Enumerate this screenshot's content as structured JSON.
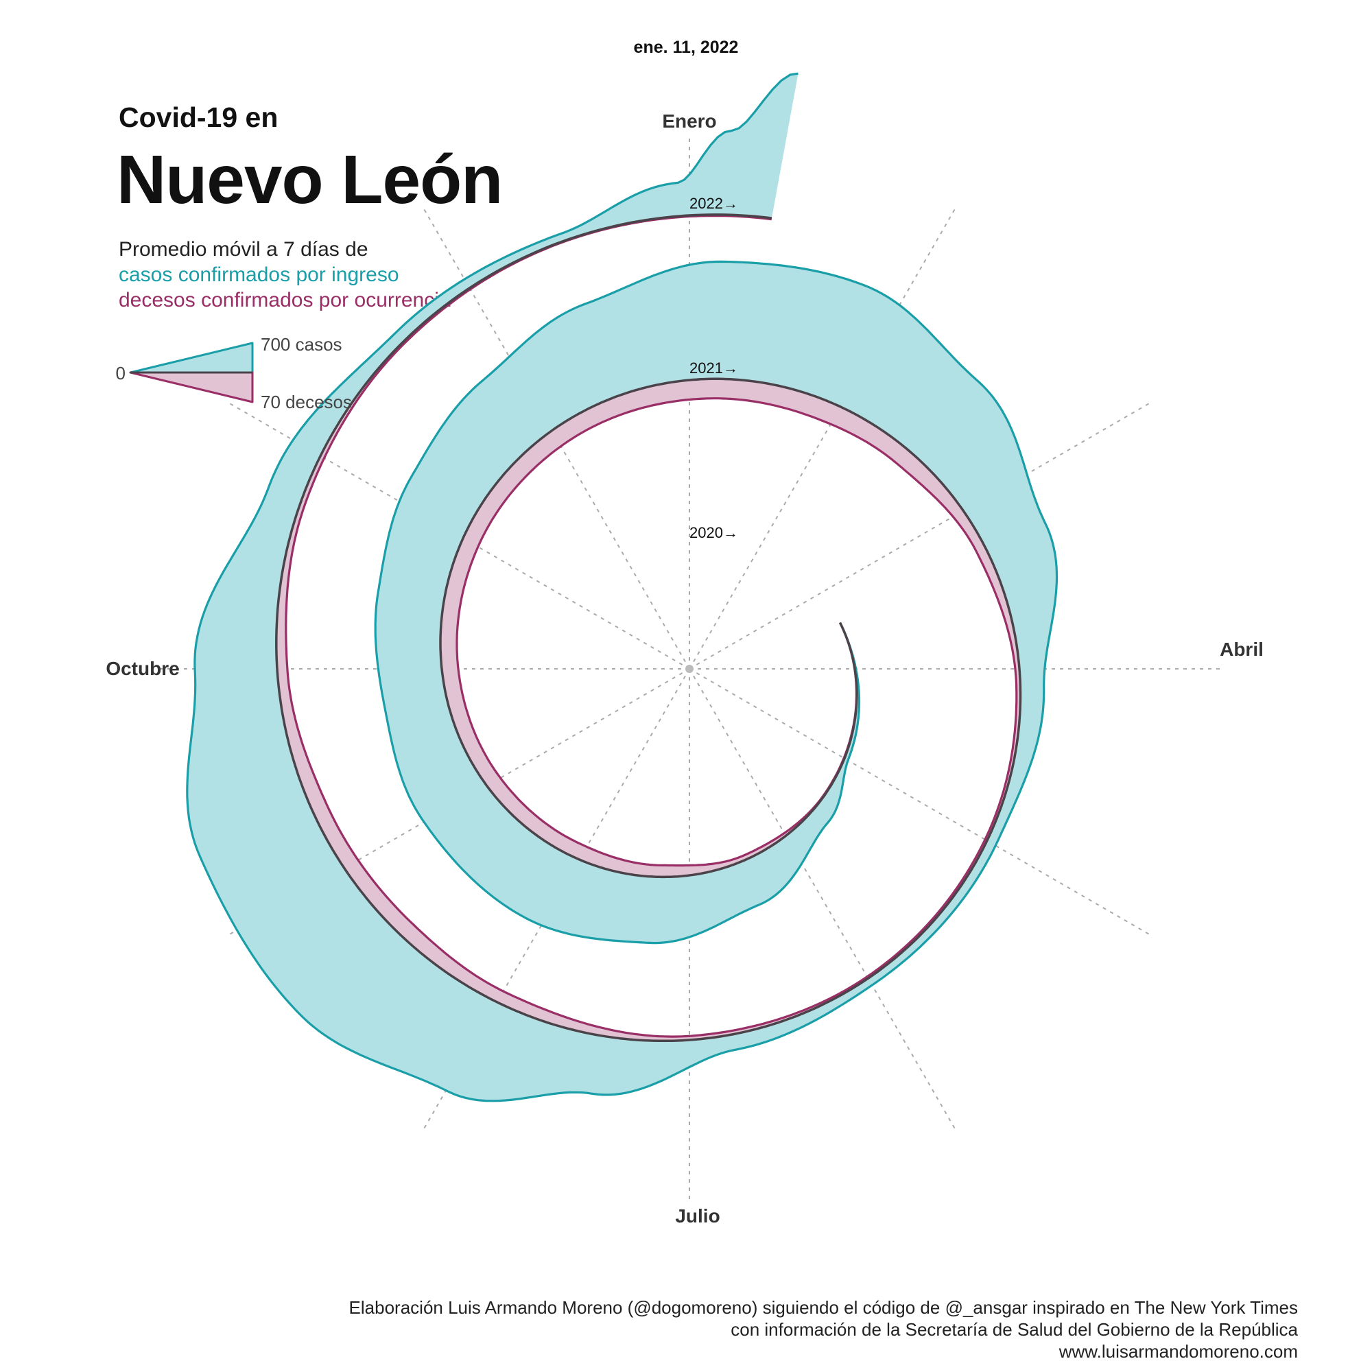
{
  "header": {
    "date": "ene. 11, 2022",
    "title_small": "Covid-19 en",
    "title_big": "Nuevo León",
    "subtitle_line1": "Promedio móvil a 7 días de",
    "subtitle_cases": "casos confirmados por ingreso",
    "subtitle_deaths": "decesos confirmados por ocurrencia"
  },
  "legend": {
    "zero": "0",
    "cases": "700 casos",
    "deaths": "70 decesos"
  },
  "colors": {
    "cases_fill": "#b2e1e5",
    "cases_stroke": "#1a9ea8",
    "deaths_fill": "#e2c3d3",
    "deaths_stroke": "#9a2e66",
    "baseline": "#4a434a",
    "grid": "#aaaaaa"
  },
  "credits": {
    "line1": "Elaboración Luis Armando Moreno (@dogomoreno) siguiendo el código de @_ansgar inspirado en The New York Times",
    "line2": "con información de la Secretaría de Salud del Gobierno de la República",
    "line3": "www.luisarmandomoreno.com"
  },
  "chart_data": {
    "type": "area",
    "layout": "spiral",
    "month_labels": [
      "Enero",
      "Abril",
      "Julio",
      "Octubre"
    ],
    "year_labels": [
      "2020→",
      "2021→",
      "2022→"
    ],
    "legend_scale": {
      "cases": 700,
      "deaths": 70
    },
    "series": [
      {
        "name": "casos confirmados por ingreso",
        "points": [
          {
            "date": "2020-03-15",
            "value": 0
          },
          {
            "date": "2020-05-01",
            "value": 20
          },
          {
            "date": "2020-05-20",
            "value": 100
          },
          {
            "date": "2020-06-15",
            "value": 240
          },
          {
            "date": "2020-07-10",
            "value": 340
          },
          {
            "date": "2020-08-05",
            "value": 390
          },
          {
            "date": "2020-09-01",
            "value": 370
          },
          {
            "date": "2020-09-25",
            "value": 320
          },
          {
            "date": "2020-10-15",
            "value": 340
          },
          {
            "date": "2020-11-05",
            "value": 380
          },
          {
            "date": "2020-11-25",
            "value": 420
          },
          {
            "date": "2020-12-15",
            "value": 500
          },
          {
            "date": "2021-01-05",
            "value": 600
          },
          {
            "date": "2021-01-25",
            "value": 620
          },
          {
            "date": "2021-02-15",
            "value": 500
          },
          {
            "date": "2021-03-10",
            "value": 330
          },
          {
            "date": "2021-04-05",
            "value": 120
          },
          {
            "date": "2021-05-01",
            "value": 50
          },
          {
            "date": "2021-06-01",
            "value": 40
          },
          {
            "date": "2021-06-25",
            "value": 80
          },
          {
            "date": "2021-07-15",
            "value": 300
          },
          {
            "date": "2021-08-01",
            "value": 520
          },
          {
            "date": "2021-08-20",
            "value": 650
          },
          {
            "date": "2021-09-10",
            "value": 620
          },
          {
            "date": "2021-10-01",
            "value": 420
          },
          {
            "date": "2021-10-25",
            "value": 180
          },
          {
            "date": "2021-11-20",
            "value": 60
          },
          {
            "date": "2021-12-15",
            "value": 40
          },
          {
            "date": "2021-12-30",
            "value": 170
          },
          {
            "date": "2022-01-05",
            "value": 430
          },
          {
            "date": "2022-01-11",
            "value": 750
          }
        ]
      },
      {
        "name": "decesos confirmados por ocurrencia",
        "points": [
          {
            "date": "2020-03-15",
            "value": 0
          },
          {
            "date": "2020-05-15",
            "value": 2
          },
          {
            "date": "2020-06-15",
            "value": 12
          },
          {
            "date": "2020-07-10",
            "value": 30
          },
          {
            "date": "2020-08-05",
            "value": 38
          },
          {
            "date": "2020-09-01",
            "value": 40
          },
          {
            "date": "2020-10-01",
            "value": 42
          },
          {
            "date": "2020-11-01",
            "value": 44
          },
          {
            "date": "2020-12-01",
            "value": 46
          },
          {
            "date": "2021-01-05",
            "value": 50
          },
          {
            "date": "2021-01-25",
            "value": 52
          },
          {
            "date": "2021-02-15",
            "value": 45
          },
          {
            "date": "2021-03-10",
            "value": 25
          },
          {
            "date": "2021-04-05",
            "value": 10
          },
          {
            "date": "2021-05-01",
            "value": 6
          },
          {
            "date": "2021-06-01",
            "value": 5
          },
          {
            "date": "2021-07-01",
            "value": 10
          },
          {
            "date": "2021-08-01",
            "value": 32
          },
          {
            "date": "2021-08-20",
            "value": 42
          },
          {
            "date": "2021-09-10",
            "value": 40
          },
          {
            "date": "2021-10-01",
            "value": 26
          },
          {
            "date": "2021-10-25",
            "value": 12
          },
          {
            "date": "2021-11-20",
            "value": 5
          },
          {
            "date": "2021-12-15",
            "value": 2
          },
          {
            "date": "2022-01-11",
            "value": 3
          }
        ]
      }
    ],
    "grid": true
  }
}
